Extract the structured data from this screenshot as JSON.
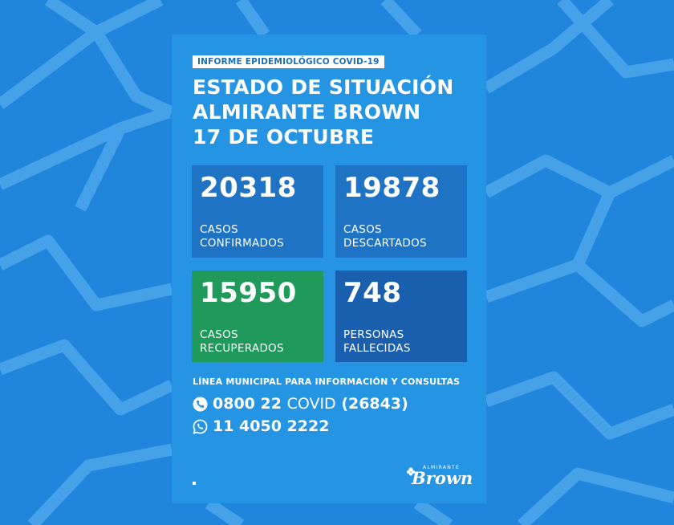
{
  "header": {
    "tag": "INFORME EPIDEMIOLÓGICO COVID-19",
    "title_lines": [
      "ESTADO DE SITUACIÓN",
      "ALMIRANTE BROWN",
      "17 DE OCTUBRE"
    ]
  },
  "stats": [
    {
      "value": "20318",
      "label_lines": [
        "CASOS",
        "CONFIRMADOS"
      ],
      "color": "#1f73c5"
    },
    {
      "value": "19878",
      "label_lines": [
        "CASOS",
        "DESCARTADOS"
      ],
      "color": "#1f73c5"
    },
    {
      "value": "15950",
      "label_lines": [
        "CASOS",
        "RECUPERADOS"
      ],
      "color": "#1f9a5b"
    },
    {
      "value": "748",
      "label_lines": [
        "PERSONAS",
        "FALLECIDAS"
      ],
      "color": "#1a5fae"
    }
  ],
  "contact": {
    "title": "LÍNEA MUNICIPAL PARA INFORMACIÓN Y CONSULTAS",
    "phone_prefix": "0800 22",
    "phone_word": "COVID",
    "phone_suffix": "(26843)",
    "whatsapp": "11 4050 2222",
    "phone_icon": "phone-icon",
    "whatsapp_icon": "whatsapp-icon"
  },
  "logo": {
    "small_text": "ALMIRANTE",
    "big_text": "Brown"
  },
  "colors": {
    "background": "#1f86dc",
    "card": "#2594e2"
  }
}
